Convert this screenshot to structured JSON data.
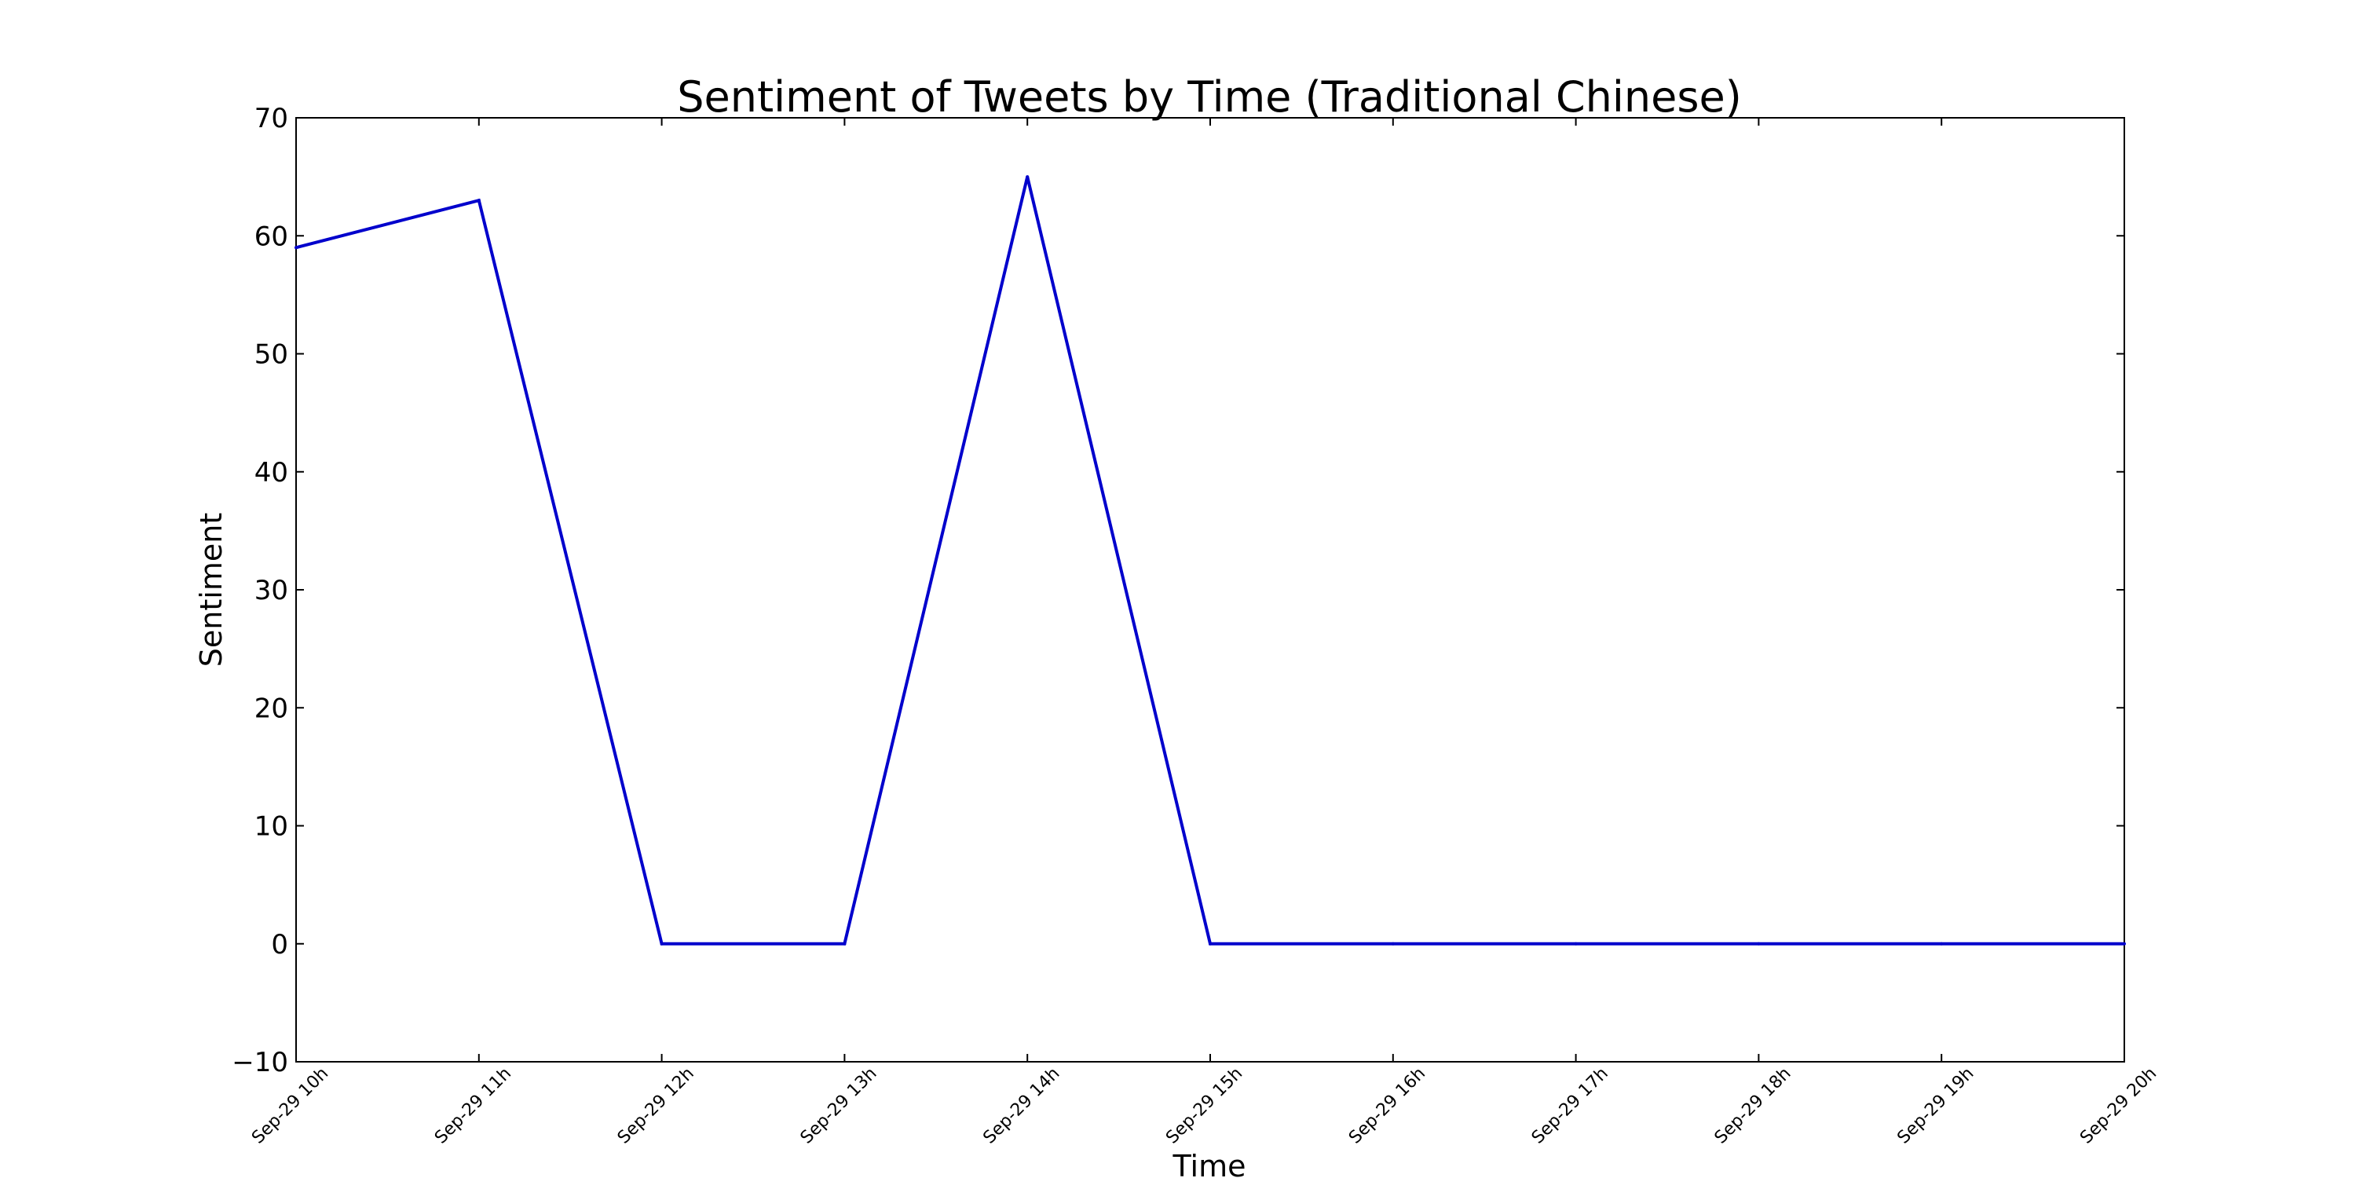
{
  "chart_data": {
    "type": "line",
    "title": "Sentiment of Tweets by Time (Traditional Chinese)",
    "xlabel": "Time",
    "ylabel": "Sentiment",
    "categories": [
      "Sep-29 10h",
      "Sep-29 11h",
      "Sep-29 12h",
      "Sep-29 13h",
      "Sep-29 14h",
      "Sep-29 15h",
      "Sep-29 16h",
      "Sep-29 17h",
      "Sep-29 18h",
      "Sep-29 19h",
      "Sep-29 20h"
    ],
    "series": [
      {
        "values": [
          59,
          63,
          0,
          0,
          65,
          0,
          0,
          0,
          0,
          0,
          0
        ],
        "color": "#0000cc"
      }
    ],
    "ylim": [
      -10,
      70
    ],
    "yticks": [
      "−10",
      "0",
      "10",
      "20",
      "30",
      "40",
      "50",
      "60",
      "70"
    ],
    "grid": false,
    "legend": "none"
  }
}
